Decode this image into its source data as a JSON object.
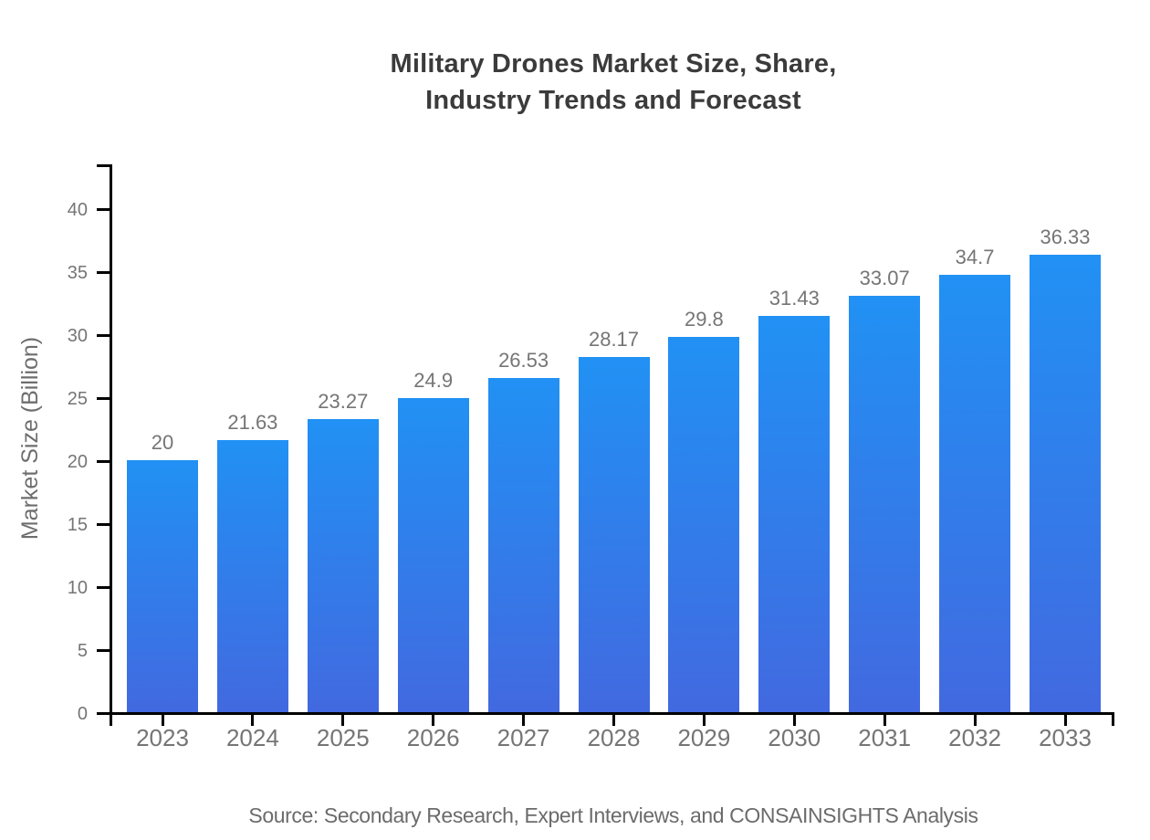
{
  "chart_data": {
    "type": "bar",
    "title": "Military Drones Market Size, Share, Industry Trends and Forecast",
    "title_lines": [
      "Military Drones Market Size, Share,",
      "Industry Trends and Forecast"
    ],
    "categories": [
      "2023",
      "2024",
      "2025",
      "2026",
      "2027",
      "2028",
      "2029",
      "2030",
      "2031",
      "2032",
      "2033"
    ],
    "values": [
      20,
      21.63,
      23.27,
      24.9,
      26.53,
      28.17,
      29.8,
      31.43,
      33.07,
      34.7,
      36.33
    ],
    "value_labels": [
      "20",
      "21.63",
      "23.27",
      "24.9",
      "26.53",
      "28.17",
      "29.8",
      "31.43",
      "33.07",
      "34.7",
      "36.33"
    ],
    "xlabel": "",
    "ylabel": "Market Size (Billion)",
    "yticks": [
      0,
      5,
      10,
      15,
      20,
      25,
      30,
      35,
      40
    ],
    "ylim": [
      0,
      43.5
    ],
    "grid": "off",
    "legend": "none",
    "source": "Source: Secondary Research, Expert Interviews, and CONSAINSIGHTS Analysis",
    "colors": {
      "bar_gradient_top": "#2191f4",
      "bar_gradient_bottom": "#4269e0",
      "axis": "#000000",
      "tick_label": "#757575",
      "value_label": "#757575",
      "title": "#3b3b3b",
      "axis_title": "#6e6e6e",
      "source_text": "#6b6b6b",
      "background": "#ffffff"
    }
  }
}
